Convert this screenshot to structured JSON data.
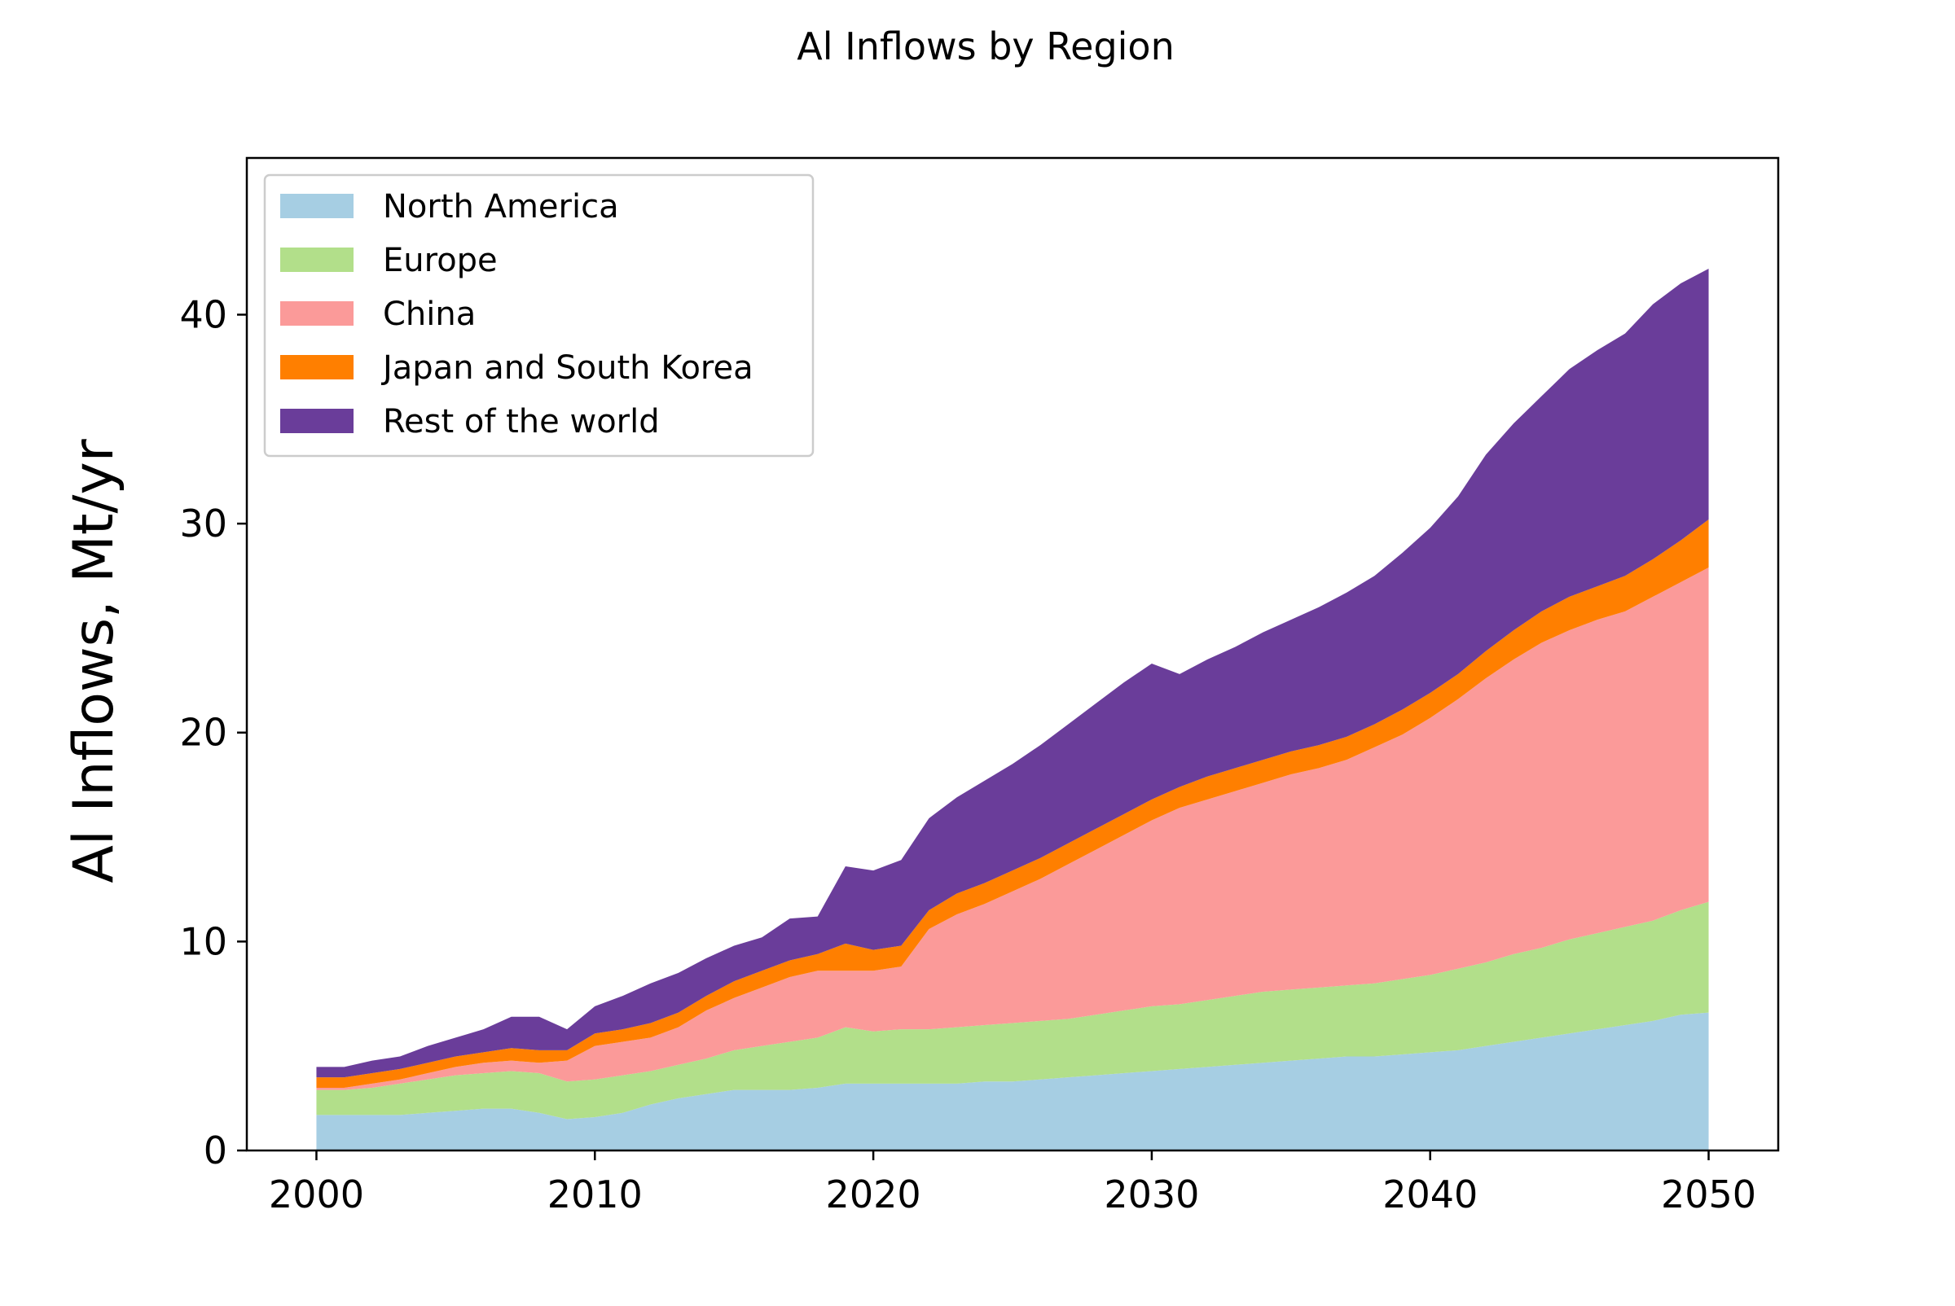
{
  "chart_data": {
    "type": "area",
    "stacked": true,
    "title": "Al Inflows by Region",
    "xlabel": "",
    "ylabel": "Al Inflows, Mt/yr",
    "xlim": [
      1997.5,
      2052.5
    ],
    "ylim": [
      0,
      47.5
    ],
    "xticks": [
      2000,
      2010,
      2020,
      2030,
      2040,
      2050
    ],
    "yticks": [
      0,
      10,
      20,
      30,
      40
    ],
    "grid": false,
    "legend_position": "top-left",
    "x": [
      2000,
      2001,
      2002,
      2003,
      2004,
      2005,
      2006,
      2007,
      2008,
      2009,
      2010,
      2011,
      2012,
      2013,
      2014,
      2015,
      2016,
      2017,
      2018,
      2019,
      2020,
      2021,
      2022,
      2023,
      2024,
      2025,
      2026,
      2027,
      2028,
      2029,
      2030,
      2031,
      2032,
      2033,
      2034,
      2035,
      2036,
      2037,
      2038,
      2039,
      2040,
      2041,
      2042,
      2043,
      2044,
      2045,
      2046,
      2047,
      2048,
      2049,
      2050
    ],
    "series": [
      {
        "name": "North America",
        "color": "#a6cee3",
        "values": [
          1.7,
          1.7,
          1.7,
          1.7,
          1.8,
          1.9,
          2.0,
          2.0,
          1.8,
          1.5,
          1.6,
          1.8,
          2.2,
          2.5,
          2.7,
          2.9,
          2.9,
          2.9,
          3.0,
          3.2,
          3.2,
          3.2,
          3.2,
          3.2,
          3.3,
          3.3,
          3.4,
          3.5,
          3.6,
          3.7,
          3.8,
          3.9,
          4.0,
          4.1,
          4.2,
          4.3,
          4.4,
          4.5,
          4.5,
          4.6,
          4.7,
          4.8,
          5.0,
          5.2,
          5.4,
          5.6,
          5.8,
          6.0,
          6.2,
          6.5,
          6.6
        ]
      },
      {
        "name": "Europe",
        "color": "#b2df8a",
        "values": [
          1.2,
          1.2,
          1.3,
          1.5,
          1.6,
          1.7,
          1.7,
          1.8,
          1.9,
          1.8,
          1.8,
          1.8,
          1.6,
          1.6,
          1.7,
          1.9,
          2.1,
          2.3,
          2.4,
          2.7,
          2.5,
          2.6,
          2.6,
          2.7,
          2.7,
          2.8,
          2.8,
          2.8,
          2.9,
          3.0,
          3.1,
          3.1,
          3.2,
          3.3,
          3.4,
          3.4,
          3.4,
          3.4,
          3.5,
          3.6,
          3.7,
          3.9,
          4.0,
          4.2,
          4.3,
          4.5,
          4.6,
          4.7,
          4.8,
          5.0,
          5.3
        ]
      },
      {
        "name": "China",
        "color": "#fb9a99",
        "values": [
          0.1,
          0.1,
          0.2,
          0.2,
          0.3,
          0.4,
          0.5,
          0.5,
          0.5,
          1.0,
          1.6,
          1.6,
          1.6,
          1.8,
          2.3,
          2.5,
          2.8,
          3.1,
          3.2,
          2.7,
          2.9,
          3.0,
          4.8,
          5.4,
          5.8,
          6.3,
          6.8,
          7.4,
          7.9,
          8.4,
          8.9,
          9.4,
          9.6,
          9.8,
          10.0,
          10.3,
          10.5,
          10.8,
          11.3,
          11.7,
          12.3,
          12.9,
          13.6,
          14.1,
          14.6,
          14.8,
          15.0,
          15.1,
          15.5,
          15.7,
          16.0
        ]
      },
      {
        "name": "Japan and South Korea",
        "color": "#ff7f00",
        "values": [
          0.5,
          0.5,
          0.5,
          0.5,
          0.5,
          0.5,
          0.5,
          0.6,
          0.6,
          0.5,
          0.6,
          0.6,
          0.7,
          0.7,
          0.7,
          0.8,
          0.8,
          0.8,
          0.8,
          1.3,
          1.0,
          1.0,
          0.9,
          1.0,
          1.0,
          1.0,
          1.0,
          1.0,
          1.0,
          1.0,
          1.0,
          1.0,
          1.1,
          1.1,
          1.1,
          1.1,
          1.1,
          1.1,
          1.1,
          1.2,
          1.2,
          1.2,
          1.3,
          1.4,
          1.5,
          1.6,
          1.6,
          1.7,
          1.8,
          2.0,
          2.3
        ]
      },
      {
        "name": "Rest of the world",
        "color": "#6a3d9a",
        "values": [
          0.5,
          0.5,
          0.6,
          0.6,
          0.8,
          0.9,
          1.1,
          1.5,
          1.6,
          1.0,
          1.3,
          1.6,
          1.9,
          1.9,
          1.8,
          1.7,
          1.6,
          2.0,
          1.8,
          3.7,
          3.8,
          4.1,
          4.4,
          4.6,
          4.9,
          5.1,
          5.4,
          5.7,
          6.0,
          6.3,
          6.5,
          5.4,
          5.6,
          5.8,
          6.1,
          6.3,
          6.6,
          6.9,
          7.1,
          7.5,
          7.9,
          8.5,
          9.4,
          9.9,
          10.3,
          10.9,
          11.3,
          11.6,
          12.2,
          12.3,
          12.0
        ]
      }
    ]
  }
}
